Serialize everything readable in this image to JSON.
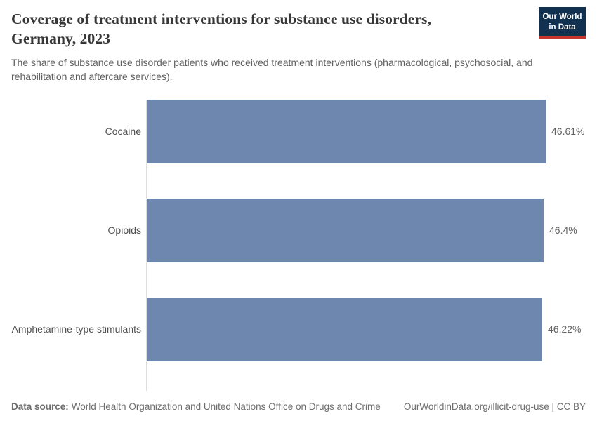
{
  "header": {
    "title": "Coverage of treatment interventions for substance use disorders, Germany, 2023",
    "subtitle": "The share of substance use disorder patients who received treatment interventions (pharmacological, psychosocial, and rehabilitation and aftercare services).",
    "logo": {
      "line1": "Our World",
      "line2": "in Data",
      "background_color": "#12304F",
      "accent_color": "#C7352D"
    }
  },
  "chart_data": {
    "type": "bar",
    "orientation": "horizontal",
    "title": "Coverage of treatment interventions for substance use disorders, Germany, 2023",
    "categories": [
      "Cocaine",
      "Opioids",
      "Amphetamine-type stimulants"
    ],
    "values": [
      46.61,
      46.4,
      46.22
    ],
    "value_labels": [
      "46.61%",
      "46.4%",
      "46.22%"
    ],
    "unit": "%",
    "xlabel": "",
    "ylabel": "",
    "xlim": [
      0,
      46.61
    ],
    "grid": false,
    "legend": "none",
    "bar_color": "#6E87AE",
    "axis_line_color": "#dedede"
  },
  "footer": {
    "source_label": "Data source:",
    "source_text": "World Health Organization and United Nations Office on Drugs and Crime",
    "credit": "OurWorldinData.org/illicit-drug-use | CC BY"
  }
}
